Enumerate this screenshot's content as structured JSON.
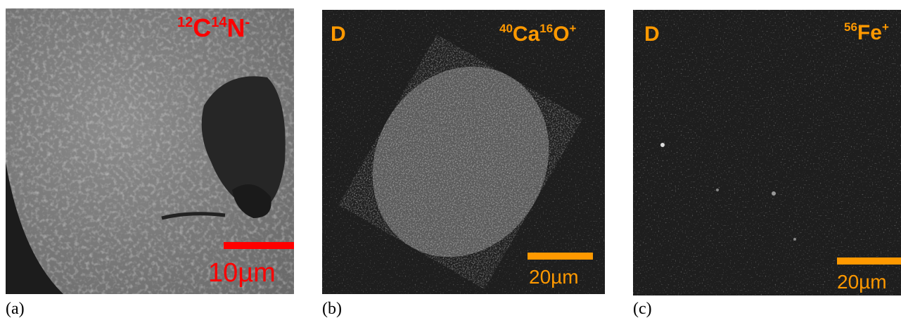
{
  "panels": [
    {
      "caption": "(a)",
      "ion": [
        {
          "sup": "12",
          "base": "C"
        },
        {
          "sup": "14",
          "base": "N"
        }
      ],
      "charge": "-",
      "scale_bar": "10µm"
    },
    {
      "caption": "(b)",
      "mark": "D",
      "ion": [
        {
          "sup": "40",
          "base": "Ca"
        },
        {
          "sup": "16",
          "base": "O"
        }
      ],
      "charge": "+",
      "scale_bar": "20µm"
    },
    {
      "caption": "(c)",
      "mark": "D",
      "ion": [
        {
          "sup": "56",
          "base": "Fe"
        }
      ],
      "charge": "+",
      "scale_bar": "20µm"
    }
  ]
}
